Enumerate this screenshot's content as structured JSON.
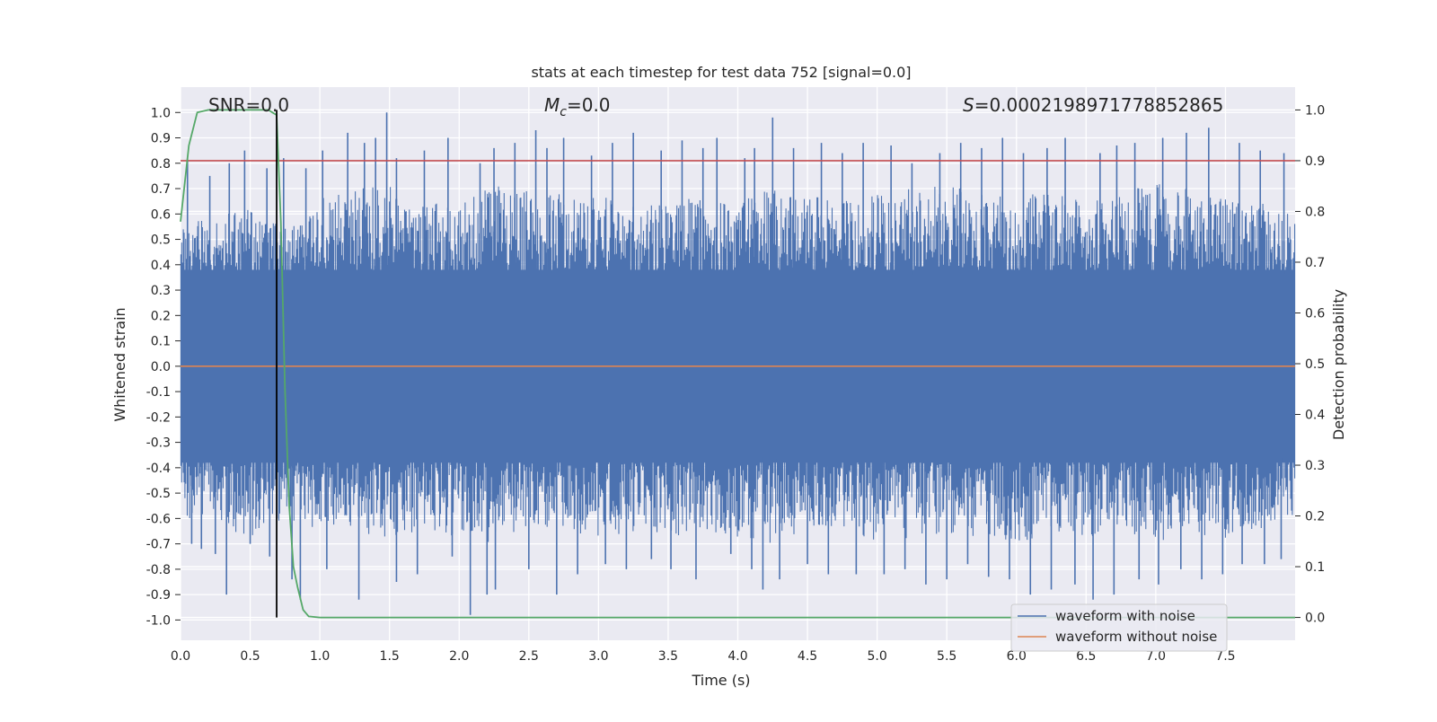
{
  "chart_data": {
    "type": "line",
    "title": "stats at each timestep for test data 752 [signal=0.0]",
    "xlabel": "Time (s)",
    "ylabel_left": "Whitened strain",
    "ylabel_right": "Detection probability",
    "xlim": [
      0.0,
      8.0
    ],
    "ylim_left": [
      -1.08,
      1.1
    ],
    "ylim_right": [
      -0.045,
      1.045
    ],
    "x_ticks": [
      0.0,
      0.5,
      1.0,
      1.5,
      2.0,
      2.5,
      3.0,
      3.5,
      4.0,
      4.5,
      5.0,
      5.5,
      6.0,
      6.5,
      7.0,
      7.5
    ],
    "x_tick_labels": [
      "0.0",
      "0.5",
      "1.0",
      "1.5",
      "2.0",
      "2.5",
      "3.0",
      "3.5",
      "4.0",
      "4.5",
      "5.0",
      "5.5",
      "6.0",
      "6.5",
      "7.0",
      "7.5"
    ],
    "y_left_ticks": [
      1.0,
      0.9,
      0.8,
      0.7,
      0.6,
      0.5,
      0.4,
      0.3,
      0.2,
      0.1,
      0.0,
      -0.1,
      -0.2,
      -0.3,
      -0.4,
      -0.5,
      -0.6,
      -0.7,
      -0.8,
      -0.9,
      -1.0
    ],
    "y_left_tick_labels": [
      "1.0",
      "0.9",
      "0.8",
      "0.7",
      "0.6",
      "0.5",
      "0.4",
      "0.3",
      "0.2",
      "0.1",
      "0.0",
      "-0.1",
      "-0.2",
      "-0.3",
      "-0.4",
      "-0.5",
      "-0.6",
      "-0.7",
      "-0.8",
      "-0.9",
      "-1.0"
    ],
    "y_right_ticks": [
      1.0,
      0.9,
      0.8,
      0.7,
      0.6,
      0.5,
      0.4,
      0.3,
      0.2,
      0.1,
      0.0
    ],
    "y_right_tick_labels": [
      "1.0",
      "0.9",
      "0.8",
      "0.7",
      "0.6",
      "0.5",
      "0.4",
      "0.3",
      "0.2",
      "0.1",
      "0.0"
    ],
    "annotations": {
      "snr": "SNR=0.0",
      "mc_symbol": "M",
      "mc_sub": "c",
      "mc_value": "=0.0",
      "s_symbol": "S",
      "s_value": "=0.0002198971778852865"
    },
    "series": [
      {
        "name": "waveform with noise",
        "color": "#4c72b0",
        "axis": "left",
        "description": "whitened noisy strain, dense noise roughly within ±0.4 with spikes up to ±1.0",
        "upper_envelope_t": [
          0.0,
          0.25,
          0.5,
          0.75,
          1.0,
          1.25,
          1.5,
          1.75,
          2.0,
          2.25,
          2.5,
          2.75,
          3.0,
          3.25,
          3.5,
          3.75,
          4.0,
          4.25,
          4.5,
          4.75,
          5.0,
          5.25,
          5.5,
          5.75,
          6.0,
          6.25,
          6.5,
          6.75,
          7.0,
          7.25,
          7.5,
          7.75,
          8.0
        ],
        "upper_envelope_v": [
          0.55,
          0.6,
          0.62,
          0.55,
          0.66,
          0.7,
          0.72,
          0.64,
          0.65,
          0.72,
          0.7,
          0.68,
          0.66,
          0.7,
          0.64,
          0.68,
          0.65,
          0.7,
          0.68,
          0.66,
          0.68,
          0.7,
          0.72,
          0.68,
          0.66,
          0.7,
          0.64,
          0.7,
          0.72,
          0.7,
          0.66,
          0.65,
          0.6
        ],
        "lower_envelope_t": [
          0.0,
          0.25,
          0.5,
          0.75,
          1.0,
          1.25,
          1.5,
          1.75,
          2.0,
          2.25,
          2.5,
          2.75,
          3.0,
          3.25,
          3.5,
          3.75,
          4.0,
          4.25,
          4.5,
          4.75,
          5.0,
          5.25,
          5.5,
          5.75,
          6.0,
          6.25,
          6.5,
          6.75,
          7.0,
          7.25,
          7.5,
          7.75,
          8.0
        ],
        "lower_envelope_v": [
          -0.6,
          -0.62,
          -0.68,
          -0.6,
          -0.66,
          -0.64,
          -0.7,
          -0.66,
          -0.68,
          -0.7,
          -0.66,
          -0.64,
          -0.68,
          -0.66,
          -0.7,
          -0.64,
          -0.68,
          -0.7,
          -0.66,
          -0.64,
          -0.7,
          -0.68,
          -0.66,
          -0.68,
          -0.7,
          -0.66,
          -0.68,
          -0.64,
          -0.7,
          -0.66,
          -0.68,
          -0.64,
          -0.62
        ],
        "spikes_up_t": [
          0.05,
          0.21,
          0.35,
          0.46,
          0.62,
          0.74,
          0.9,
          1.02,
          1.2,
          1.32,
          1.4,
          1.48,
          1.55,
          1.75,
          1.92,
          2.15,
          2.25,
          2.4,
          2.55,
          2.63,
          2.75,
          2.95,
          3.1,
          3.25,
          3.45,
          3.6,
          3.75,
          3.85,
          4.05,
          4.12,
          4.25,
          4.4,
          4.6,
          4.75,
          4.9,
          5.1,
          5.25,
          5.45,
          5.6,
          5.75,
          5.9,
          6.05,
          6.22,
          6.35,
          6.6,
          6.72,
          6.85,
          7.05,
          7.22,
          7.38,
          7.6,
          7.75,
          7.92
        ],
        "spikes_up_v": [
          0.82,
          0.75,
          0.8,
          0.85,
          0.78,
          0.82,
          0.78,
          0.85,
          0.92,
          0.88,
          0.9,
          1.0,
          0.82,
          0.85,
          0.9,
          0.8,
          0.86,
          0.88,
          0.93,
          0.86,
          0.9,
          0.83,
          0.88,
          0.92,
          0.85,
          0.89,
          0.86,
          0.9,
          0.82,
          0.86,
          0.98,
          0.86,
          0.88,
          0.84,
          0.88,
          0.87,
          0.8,
          0.84,
          0.88,
          0.86,
          0.9,
          0.84,
          0.86,
          0.9,
          0.84,
          0.87,
          0.88,
          0.9,
          0.92,
          0.94,
          0.88,
          0.85,
          0.84
        ],
        "spikes_down_t": [
          0.08,
          0.15,
          0.25,
          0.33,
          0.5,
          0.64,
          0.8,
          0.86,
          1.05,
          1.28,
          1.55,
          1.7,
          1.95,
          2.08,
          2.2,
          2.26,
          2.5,
          2.7,
          2.85,
          3.05,
          3.2,
          3.38,
          3.52,
          3.7,
          3.95,
          4.1,
          4.18,
          4.3,
          4.5,
          4.65,
          4.85,
          5.05,
          5.2,
          5.35,
          5.5,
          5.65,
          5.8,
          5.95,
          6.1,
          6.25,
          6.42,
          6.55,
          6.7,
          6.88,
          7.02,
          7.18,
          7.33,
          7.48,
          7.62,
          7.78,
          7.9
        ],
        "spikes_down_v": [
          -0.7,
          -0.72,
          -0.74,
          -0.9,
          -0.7,
          -0.75,
          -0.84,
          -0.92,
          -0.8,
          -0.92,
          -0.85,
          -0.82,
          -0.75,
          -0.98,
          -0.9,
          -0.88,
          -0.8,
          -0.9,
          -0.82,
          -0.78,
          -0.8,
          -0.76,
          -0.8,
          -0.84,
          -0.74,
          -0.8,
          -0.88,
          -0.84,
          -0.78,
          -0.82,
          -0.82,
          -0.82,
          -0.8,
          -0.86,
          -0.84,
          -0.78,
          -0.83,
          -0.84,
          -0.9,
          -0.88,
          -0.86,
          -0.92,
          -0.9,
          -0.84,
          -0.86,
          -0.8,
          -0.84,
          -0.82,
          -0.78,
          -0.78,
          -0.76
        ]
      },
      {
        "name": "waveform without noise",
        "color": "#dd8452",
        "axis": "left",
        "x": [
          0.0,
          8.0
        ],
        "y": [
          0.0,
          0.0
        ]
      },
      {
        "name": "detection probability",
        "color": "#55a868",
        "axis": "right",
        "x": [
          0.0,
          0.06,
          0.12,
          0.2,
          0.3,
          0.4,
          0.5,
          0.6,
          0.63,
          0.66,
          0.69,
          0.72,
          0.75,
          0.78,
          0.81,
          0.84,
          0.88,
          0.92,
          1.0,
          2.0,
          4.0,
          6.0,
          8.0
        ],
        "y": [
          0.78,
          0.93,
          0.995,
          1.0,
          1.0,
          1.0,
          1.0,
          1.0,
          1.0,
          0.995,
          0.99,
          0.78,
          0.45,
          0.22,
          0.1,
          0.06,
          0.015,
          0.002,
          0.0,
          0.0,
          0.0,
          0.0,
          0.0
        ]
      }
    ],
    "threshold": {
      "value": 0.9,
      "axis": "right",
      "color": "#c44e52"
    },
    "marker_line": {
      "x": 0.69,
      "color": "#000000"
    },
    "legend": {
      "position": "lower-right",
      "entries": [
        {
          "label": "waveform with noise",
          "color": "#4c72b0"
        },
        {
          "label": "waveform without noise",
          "color": "#dd8452"
        }
      ]
    },
    "grid": true,
    "background": "#eaeaf2"
  }
}
